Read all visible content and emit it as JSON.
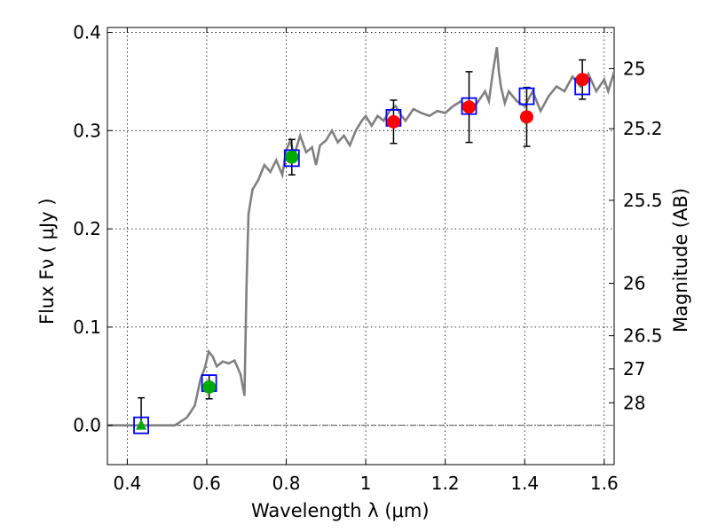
{
  "chart_data": {
    "type": "scatter",
    "title": "",
    "xlabel": "Wavelength  λ (μm)",
    "ylabel": "Flux  Fν  ( μJy )",
    "y2label": "Magnitude (AB)",
    "xlim": [
      0.35,
      1.625
    ],
    "ylim": [
      -0.04,
      0.405
    ],
    "grid": true,
    "legend": "none",
    "x_ticks": [
      {
        "value": 0.4,
        "label": "0.4"
      },
      {
        "value": 0.6,
        "label": "0.6"
      },
      {
        "value": 0.8,
        "label": "0.8"
      },
      {
        "value": 1.0,
        "label": "1"
      },
      {
        "value": 1.2,
        "label": "1.2"
      },
      {
        "value": 1.4,
        "label": "1.4"
      },
      {
        "value": 1.6,
        "label": "1.6"
      }
    ],
    "y_ticks": [
      {
        "value": 0.0,
        "label": "0.0"
      },
      {
        "value": 0.1,
        "label": "0.1"
      },
      {
        "value": 0.2,
        "label": "0.2"
      },
      {
        "value": 0.3,
        "label": "0.3"
      },
      {
        "value": 0.4,
        "label": "0.4"
      }
    ],
    "mag_ticks": [
      {
        "label": "25",
        "mag": 25.0
      },
      {
        "label": "25.2",
        "mag": 25.2
      },
      {
        "label": "25.5",
        "mag": 25.5
      },
      {
        "label": "26",
        "mag": 26.0
      },
      {
        "label": "26.5",
        "mag": 26.5
      },
      {
        "label": "27",
        "mag": 27.0
      },
      {
        "label": "28",
        "mag": 28.0
      }
    ],
    "zero_line": {
      "y": 0.0,
      "color": "#555555"
    },
    "series": [
      {
        "role": "model_spectrum",
        "style": "line",
        "color": "#808080",
        "x": [
          0.35,
          0.4,
          0.45,
          0.5,
          0.52,
          0.55,
          0.57,
          0.585,
          0.595,
          0.605,
          0.615,
          0.625,
          0.64,
          0.655,
          0.67,
          0.685,
          0.695,
          0.7,
          0.705,
          0.715,
          0.73,
          0.745,
          0.76,
          0.775,
          0.79,
          0.8,
          0.81,
          0.82,
          0.835,
          0.85,
          0.865,
          0.875,
          0.885,
          0.9,
          0.915,
          0.93,
          0.945,
          0.96,
          0.975,
          0.99,
          1.0,
          1.015,
          1.03,
          1.045,
          1.06,
          1.075,
          1.09,
          1.1,
          1.12,
          1.14,
          1.16,
          1.18,
          1.2,
          1.22,
          1.24,
          1.26,
          1.28,
          1.3,
          1.31,
          1.32,
          1.33,
          1.335,
          1.34,
          1.35,
          1.36,
          1.38,
          1.4,
          1.42,
          1.44,
          1.46,
          1.48,
          1.5,
          1.52,
          1.54,
          1.56,
          1.58,
          1.6,
          1.61,
          1.625
        ],
        "y": [
          0.0,
          0.0,
          0.0,
          0.0,
          0.0,
          0.008,
          0.02,
          0.048,
          0.058,
          0.075,
          0.07,
          0.06,
          0.065,
          0.063,
          0.066,
          0.052,
          0.03,
          0.14,
          0.215,
          0.24,
          0.25,
          0.265,
          0.258,
          0.27,
          0.255,
          0.28,
          0.29,
          0.275,
          0.295,
          0.278,
          0.283,
          0.265,
          0.285,
          0.29,
          0.3,
          0.288,
          0.295,
          0.285,
          0.3,
          0.31,
          0.315,
          0.305,
          0.315,
          0.31,
          0.32,
          0.325,
          0.315,
          0.31,
          0.322,
          0.318,
          0.315,
          0.32,
          0.318,
          0.325,
          0.33,
          0.32,
          0.328,
          0.34,
          0.33,
          0.36,
          0.385,
          0.36,
          0.345,
          0.328,
          0.34,
          0.33,
          0.325,
          0.34,
          0.32,
          0.335,
          0.345,
          0.34,
          0.355,
          0.345,
          0.358,
          0.34,
          0.352,
          0.34,
          0.36
        ]
      },
      {
        "role": "model_photometry",
        "style": "open-square",
        "color": "#0000ff",
        "x": [
          0.435,
          0.606,
          0.814,
          1.07,
          1.26,
          1.405,
          1.545
        ],
        "y": [
          0.0,
          0.043,
          0.272,
          0.313,
          0.325,
          0.335,
          0.345
        ]
      },
      {
        "role": "observed_green",
        "style": "filled-circle",
        "color": "#00aa00",
        "x": [
          0.606,
          0.814
        ],
        "y": [
          0.039,
          0.273
        ],
        "yerr": [
          0.012,
          0.018
        ]
      },
      {
        "role": "observed_red",
        "style": "filled-circle",
        "color": "#ff0000",
        "x": [
          1.07,
          1.26,
          1.405,
          1.545
        ],
        "y": [
          0.309,
          0.324,
          0.314,
          0.352
        ],
        "yerr": [
          0.022,
          0.036,
          0.03,
          0.02
        ]
      },
      {
        "role": "upper_limit",
        "style": "triangle",
        "color": "#00aa00",
        "x": [
          0.435
        ],
        "y": [
          0.0
        ],
        "yerr_up": [
          0.028
        ]
      }
    ]
  }
}
